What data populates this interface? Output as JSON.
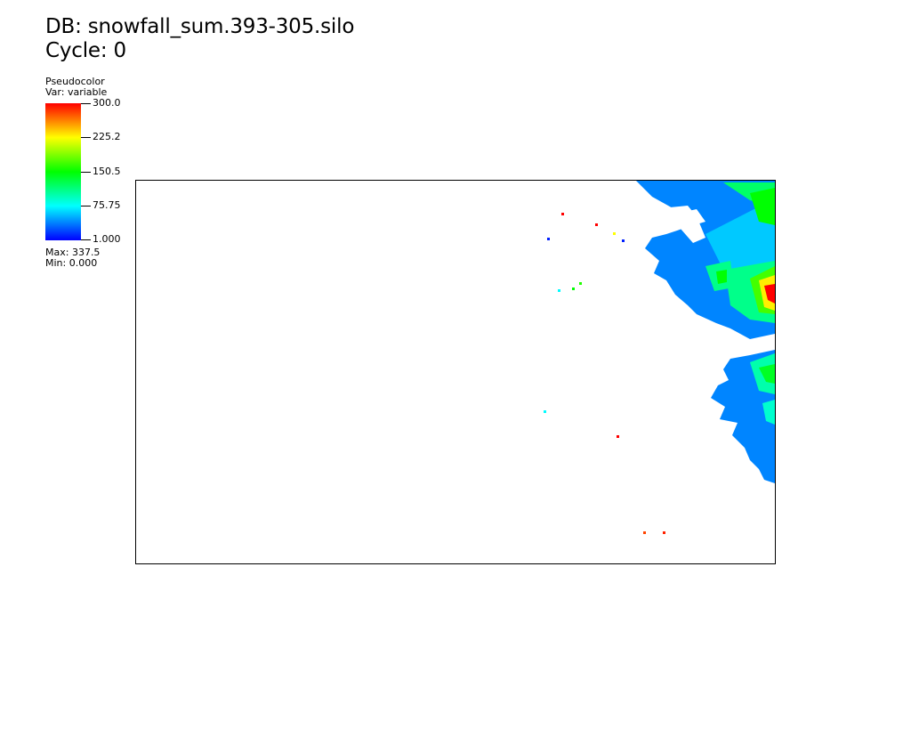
{
  "header": {
    "db_label": "DB: snowfall_sum.393-305.silo",
    "cycle_label": "Cycle: 0"
  },
  "legend": {
    "title": "Pseudocolor",
    "var_label": "Var: variable",
    "ticks": [
      "300.0",
      "225.2",
      "150.5",
      "75.75",
      "1.000"
    ],
    "max_label": "Max:  337.5",
    "min_label": "Min:  0.000",
    "colormap": [
      "#0000ff",
      "#00ffff",
      "#00ff00",
      "#ffff00",
      "#ff0000"
    ]
  },
  "chart_data": {
    "type": "heatmap",
    "variable": "variable",
    "color_range": [
      1.0,
      300.0
    ],
    "data_max": 337.5,
    "data_min": 0.0,
    "grid": false,
    "legend_placement": "top-left",
    "regions": [
      {
        "name": "north-east mass",
        "typical_value": 40,
        "peak_value": 300
      },
      {
        "name": "east-central mass",
        "typical_value": 40,
        "peak_value": 150
      },
      {
        "name": "scattered cells",
        "values": [
          300,
          300,
          225,
          160,
          150,
          75,
          75,
          10,
          10,
          300,
          290,
          280
        ]
      }
    ]
  }
}
